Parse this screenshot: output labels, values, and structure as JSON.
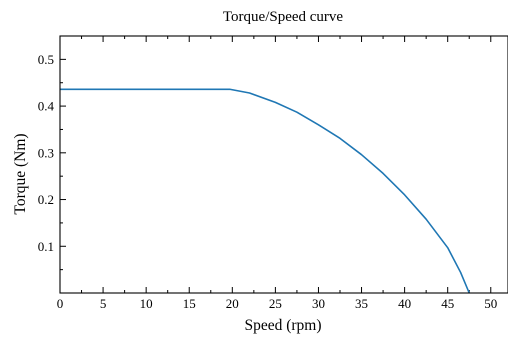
{
  "chart_data": {
    "type": "line",
    "title": "Torque/Speed curve",
    "xlabel": "Speed (rpm)",
    "ylabel": "Torque (Nm)",
    "xlim": [
      0,
      52
    ],
    "ylim": [
      0,
      0.55
    ],
    "xticks": [
      0,
      5,
      10,
      15,
      20,
      25,
      30,
      35,
      40,
      45,
      50
    ],
    "yticks": [
      0.1,
      0.2,
      0.3,
      0.4,
      0.5
    ],
    "xtick_labels": [
      "0",
      "5",
      "10",
      "15",
      "20",
      "25",
      "30",
      "35",
      "40",
      "45",
      "50"
    ],
    "ytick_labels": [
      "0.1",
      "0.2",
      "0.3",
      "0.4",
      "0.5"
    ],
    "grid": false,
    "line_color": "#1f77b4",
    "series": [
      {
        "x": [
          0,
          5,
          10,
          15,
          19.7,
          22,
          25,
          27.5,
          30,
          32.5,
          35,
          37.5,
          40,
          42.5,
          45,
          46.5,
          47.5
        ],
        "y": [
          0.436,
          0.436,
          0.436,
          0.436,
          0.436,
          0.428,
          0.408,
          0.387,
          0.36,
          0.331,
          0.296,
          0.256,
          0.21,
          0.158,
          0.097,
          0.044,
          0.0
        ]
      }
    ]
  }
}
